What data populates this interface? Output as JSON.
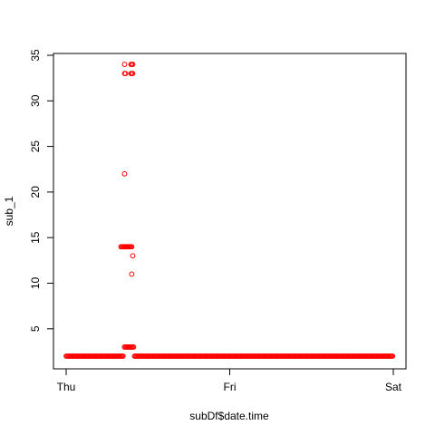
{
  "chart_data": {
    "type": "scatter",
    "title": "",
    "xlabel": "subDf$date.time",
    "ylabel": "sub_1",
    "x_unit": "days",
    "xlim": [
      0,
      2
    ],
    "ylim": [
      1.5,
      35
    ],
    "x_ticks": [
      {
        "value": 0,
        "label": "Thu"
      },
      {
        "value": 1,
        "label": "Fri"
      },
      {
        "value": 2,
        "label": "Sat"
      }
    ],
    "y_ticks": [
      5,
      10,
      15,
      20,
      25,
      30,
      35
    ],
    "grid": false,
    "legend": "none",
    "marker": "open-circle",
    "point_color": "#ff0000",
    "series": [
      {
        "baseline_runs": [
          {
            "y": 2,
            "x_start": 0.0,
            "x_end": 0.352
          },
          {
            "y": 2,
            "x_start": 0.418,
            "x_end": 2.0
          }
        ],
        "points": [
          {
            "x": 0.357,
            "y": 3
          },
          {
            "x": 0.363,
            "y": 3
          },
          {
            "x": 0.368,
            "y": 3
          },
          {
            "x": 0.374,
            "y": 3
          },
          {
            "x": 0.379,
            "y": 3
          },
          {
            "x": 0.385,
            "y": 3
          },
          {
            "x": 0.39,
            "y": 3
          },
          {
            "x": 0.396,
            "y": 3
          },
          {
            "x": 0.401,
            "y": 3
          },
          {
            "x": 0.407,
            "y": 3
          },
          {
            "x": 0.412,
            "y": 3
          },
          {
            "x": 0.335,
            "y": 14
          },
          {
            "x": 0.341,
            "y": 14
          },
          {
            "x": 0.346,
            "y": 14
          },
          {
            "x": 0.352,
            "y": 14
          },
          {
            "x": 0.357,
            "y": 14
          },
          {
            "x": 0.363,
            "y": 14
          },
          {
            "x": 0.368,
            "y": 14
          },
          {
            "x": 0.374,
            "y": 14
          },
          {
            "x": 0.379,
            "y": 14
          },
          {
            "x": 0.385,
            "y": 14
          },
          {
            "x": 0.39,
            "y": 14
          },
          {
            "x": 0.396,
            "y": 14
          },
          {
            "x": 0.401,
            "y": 14
          },
          {
            "x": 0.407,
            "y": 13
          },
          {
            "x": 0.401,
            "y": 11
          },
          {
            "x": 0.357,
            "y": 22
          },
          {
            "x": 0.357,
            "y": 33
          },
          {
            "x": 0.363,
            "y": 33
          },
          {
            "x": 0.396,
            "y": 33
          },
          {
            "x": 0.401,
            "y": 33
          },
          {
            "x": 0.407,
            "y": 33
          },
          {
            "x": 0.357,
            "y": 34
          },
          {
            "x": 0.396,
            "y": 34
          },
          {
            "x": 0.401,
            "y": 34
          },
          {
            "x": 0.407,
            "y": 34
          }
        ]
      }
    ]
  }
}
